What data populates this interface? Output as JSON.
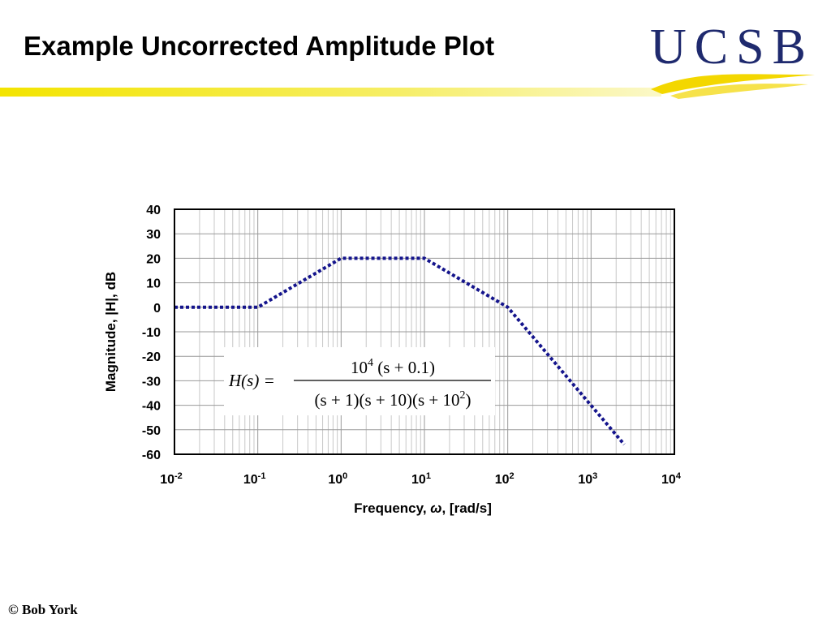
{
  "slide": {
    "title": "Example Uncorrected Amplitude Plot",
    "footer": "©  Bob York",
    "logo_text": "UCSB",
    "colors": {
      "accent_yellow": "#f3e400",
      "logo_navy": "#1f2a6e",
      "curve": "#14148c"
    }
  },
  "chart_data": {
    "type": "line",
    "title": "",
    "xlabel_prefix": "Frequency, ",
    "xlabel_symbol": "ω",
    "xlabel_suffix": ", [rad/s]",
    "ylabel": "Magnitude, |H|, dB",
    "x_scale": "log",
    "xlim": [
      0.01,
      10000
    ],
    "ylim": [
      -60,
      40
    ],
    "grid": true,
    "x_ticks": [
      {
        "base": "10",
        "exp": "-2",
        "value": 0.01
      },
      {
        "base": "10",
        "exp": "-1",
        "value": 0.1
      },
      {
        "base": "10",
        "exp": "0",
        "value": 1
      },
      {
        "base": "10",
        "exp": "1",
        "value": 10
      },
      {
        "base": "10",
        "exp": "2",
        "value": 100
      },
      {
        "base": "10",
        "exp": "3",
        "value": 1000
      },
      {
        "base": "10",
        "exp": "4",
        "value": 10000
      }
    ],
    "y_ticks": [
      40,
      30,
      20,
      10,
      0,
      -10,
      -20,
      -30,
      -40,
      -50,
      -60
    ],
    "series": [
      {
        "style": "dotted",
        "x": [
          0.01,
          0.1,
          1,
          10,
          100,
          2500
        ],
        "y": [
          0,
          0,
          20,
          20,
          0,
          -56
        ]
      }
    ],
    "annotation": {
      "lhs": "H(s) =",
      "numerator": {
        "coef": "10",
        "coef_exp": "4",
        "rest": "(s + 0.1)"
      },
      "denominator": {
        "text": "(s + 1)(s + 10)(s + 10",
        "exp": "2",
        "close": ")"
      }
    }
  }
}
